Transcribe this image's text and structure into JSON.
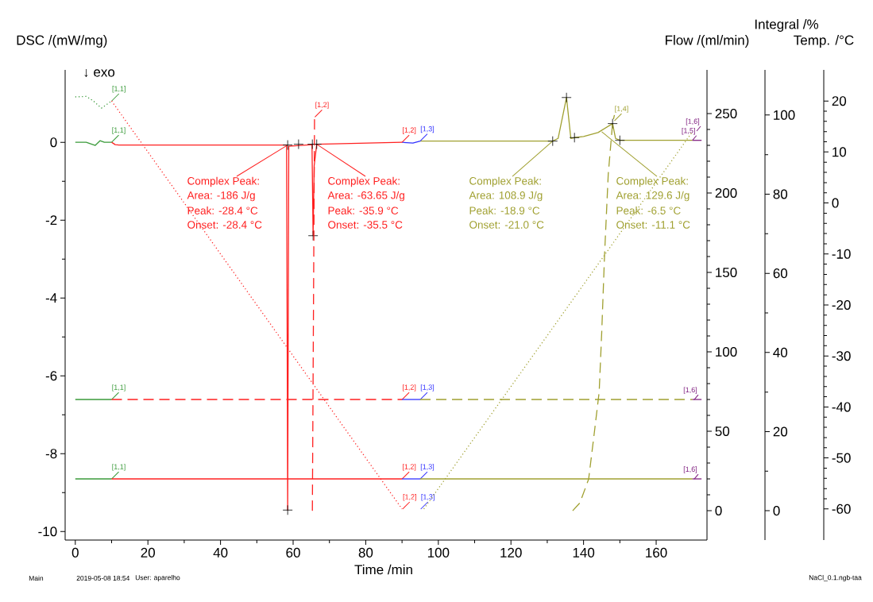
{
  "chart_data": [
    {
      "type": "line",
      "xlabel": "Time /min",
      "ylabel": "DSC /(mW/mg)",
      "y2label": "Flow /(ml/min)",
      "y3label": "Integral /%",
      "xlim": [
        -2.8,
        174
      ],
      "xticks": [
        0,
        20,
        40,
        60,
        80,
        100,
        120,
        140,
        160
      ],
      "ylim": [
        -10.22,
        1.86
      ],
      "yticks": [
        -10,
        -8,
        -6,
        -4,
        -2,
        0
      ],
      "y2lim": [
        -18.5,
        277.5
      ],
      "y2ticks": [
        0,
        50,
        100,
        150,
        200,
        250
      ],
      "y3lim": [
        -7.4,
        111.4
      ],
      "y3ticks": [
        0,
        20,
        40,
        60,
        80,
        100
      ],
      "series": [
        {
          "x": [
            0,
            3,
            5.5,
            6.8,
            8,
            10
          ],
          "values": [
            0,
            0,
            -0.08,
            0.04,
            0,
            0
          ],
          "color": "#3a9a3a",
          "axis": "y",
          "line_style": "solid"
        },
        {
          "x": [
            10,
            11,
            12,
            58.2,
            58.5,
            58.8,
            65.2,
            65.5,
            65.8,
            66.5,
            90
          ],
          "values": [
            0,
            -0.06,
            -0.07,
            -0.07,
            -9.45,
            -0.1,
            -0.06,
            -2.4,
            -0.6,
            -0.05,
            0
          ],
          "color": "#ff2020",
          "axis": "y",
          "line_style": "solid"
        },
        {
          "x": [
            90,
            93,
            95
          ],
          "values": [
            0,
            -0.02,
            0.03
          ],
          "color": "#3030ff",
          "axis": "y",
          "line_style": "solid"
        },
        {
          "x": [
            95,
            131.5,
            133,
            135.3,
            136.5,
            137.5,
            140,
            144,
            148,
            148.8,
            150,
            170
          ],
          "values": [
            0.03,
            0.03,
            0.1,
            1.15,
            0.1,
            0.12,
            0.15,
            0.25,
            0.48,
            0.1,
            0.05,
            0.05
          ],
          "color": "#a0a030",
          "axis": "y",
          "line_style": "solid"
        },
        {
          "x": [
            170,
            172.5
          ],
          "values": [
            0.05,
            0.05
          ],
          "color": "#802080",
          "axis": "y",
          "line_style": "solid"
        },
        {
          "x": [
            0,
            10
          ],
          "values": [
            70,
            70
          ],
          "color": "#3a9a3a",
          "axis": "y2",
          "line_style": "solid"
        },
        {
          "x": [
            10,
            90
          ],
          "values": [
            70,
            70
          ],
          "color": "#ff2020",
          "axis": "y2",
          "line_style": "dashed"
        },
        {
          "x": [
            90,
            95
          ],
          "values": [
            70,
            70
          ],
          "color": "#3030ff",
          "axis": "y2",
          "line_style": "solid"
        },
        {
          "x": [
            95,
            170
          ],
          "values": [
            70,
            70
          ],
          "color": "#a0a030",
          "axis": "y2",
          "line_style": "dashed"
        },
        {
          "x": [
            170,
            172.5
          ],
          "values": [
            70,
            70
          ],
          "color": "#802080",
          "axis": "y2",
          "line_style": "solid"
        },
        {
          "x": [
            0,
            10
          ],
          "values": [
            20,
            20
          ],
          "color": "#3a9a3a",
          "axis": "y2",
          "line_style": "solid"
        },
        {
          "x": [
            10,
            90
          ],
          "values": [
            20,
            20
          ],
          "color": "#ff2020",
          "axis": "y2",
          "line_style": "solid"
        },
        {
          "x": [
            90,
            95
          ],
          "values": [
            20,
            20
          ],
          "color": "#3030ff",
          "axis": "y2",
          "line_style": "solid"
        },
        {
          "x": [
            95,
            170
          ],
          "values": [
            20,
            20
          ],
          "color": "#a0a030",
          "axis": "y2",
          "line_style": "solid"
        },
        {
          "x": [
            170,
            172.5
          ],
          "values": [
            20,
            20
          ],
          "color": "#802080",
          "axis": "y2",
          "line_style": "solid"
        },
        {
          "x": [
            65.3,
            65.9
          ],
          "values": [
            0,
            100
          ],
          "color": "#ff2020",
          "axis": "y3",
          "line_style": "dashed"
        },
        {
          "x": [
            137,
            139,
            141.4,
            143,
            144.3,
            145,
            145.8,
            146.8,
            148,
            148.5
          ],
          "values": [
            0,
            2,
            8,
            20,
            30,
            45,
            65,
            85,
            98,
            100
          ],
          "color": "#a0a030",
          "axis": "y3",
          "line_style": "dashed"
        },
        {
          "type": "scatter",
          "marker": "cross",
          "x": [
            58.5,
            58.5,
            61.5,
            65.3,
            65.5,
            66.5,
            131.5,
            135.3,
            137.5,
            148,
            150
          ],
          "values": [
            -0.07,
            -9.45,
            -0.05,
            -0.05,
            -2.4,
            -0.05,
            0.03,
            1.15,
            0.12,
            0.48,
            0.05
          ],
          "color": "#000000",
          "axis": "y"
        }
      ],
      "annotations": [
        "↓ exo",
        {
          "text": "Complex Peak:",
          "x": 58.5,
          "y": -0.07
        },
        "Area:   -186 J/g",
        "Peak:   -28.4 °C",
        "Onset:  -28.4 °C",
        {
          "text": "Complex Peak:",
          "x": 66.5,
          "y": -0.05
        },
        "Area:   -63.65 J/g",
        "Peak:   -35.9 °C",
        "Onset:  -35.5 °C",
        {
          "text": "Complex Peak:",
          "x": 131.5,
          "y": 0.03
        },
        "Area:   108.9 J/g",
        "Peak:   -18.9 °C",
        "Onset:  -21.0 °C",
        {
          "text": "Complex Peak:",
          "x": 145,
          "y": 0.27
        },
        "Area:   129.6 J/g",
        "Peak:   -6.5 °C",
        "Onset:  -11.1 °C",
        "Main",
        "2019-05-08 18:54",
        "User: aparelho",
        "NaCl_0.1.ngb-taa",
        {
          "text": "[1,1]",
          "x": 10,
          "y": 0
        },
        "[1,1]",
        {
          "text": "[1,1]",
          "x": 10,
          "y": -6.61
        },
        {
          "text": "[1,1]",
          "x": 10,
          "y": -8.65
        },
        {
          "text": "[1,2]",
          "x": 66,
          "y": 0.65
        },
        {
          "text": "[1,2]",
          "x": 90,
          "y": 0
        },
        {
          "text": "[1,3]",
          "x": 95,
          "y": 0.03
        },
        {
          "text": "[1,2]",
          "x": 90,
          "y": -6.61
        },
        {
          "text": "[1,3]",
          "x": 95,
          "y": -6.61
        },
        {
          "text": "[1,2]",
          "x": 90,
          "y": -8.65
        },
        {
          "text": "[1,3]",
          "x": 95,
          "y": -8.65
        },
        "[1,2]",
        "[1,3]",
        {
          "text": "[1,4]",
          "x": 148.5,
          "y": 0.55
        },
        "[1,6]",
        {
          "text": "[1,5]",
          "x": 170,
          "y": 0.05
        },
        {
          "text": "[1,6]",
          "x": 170.5,
          "y": -6.61
        },
        {
          "text": "[1,6]",
          "x": 170.5,
          "y": -8.65
        }
      ]
    },
    {
      "type": "line",
      "ylabel": "Temp. /°C",
      "tick_labels": "y",
      "xlim": [
        -2.8,
        174
      ],
      "ylim": [
        -66.1,
        26.1
      ],
      "yticks": [
        -60,
        -50,
        -40,
        -30,
        -20,
        -10,
        0,
        10,
        20
      ],
      "series": [
        {
          "x": [
            0,
            3,
            5,
            7.2,
            10
          ],
          "values": [
            20.8,
            20.9,
            20,
            18.6,
            20
          ],
          "color": "#3a9a3a",
          "line_style": "dotted"
        },
        {
          "x": [
            10,
            90
          ],
          "values": [
            20,
            -60
          ],
          "color": "#ff2020",
          "line_style": "dotted"
        },
        {
          "x": [
            96,
            170
          ],
          "values": [
            -60,
            14
          ],
          "color": "#a0a030",
          "line_style": "dotted"
        }
      ]
    }
  ]
}
